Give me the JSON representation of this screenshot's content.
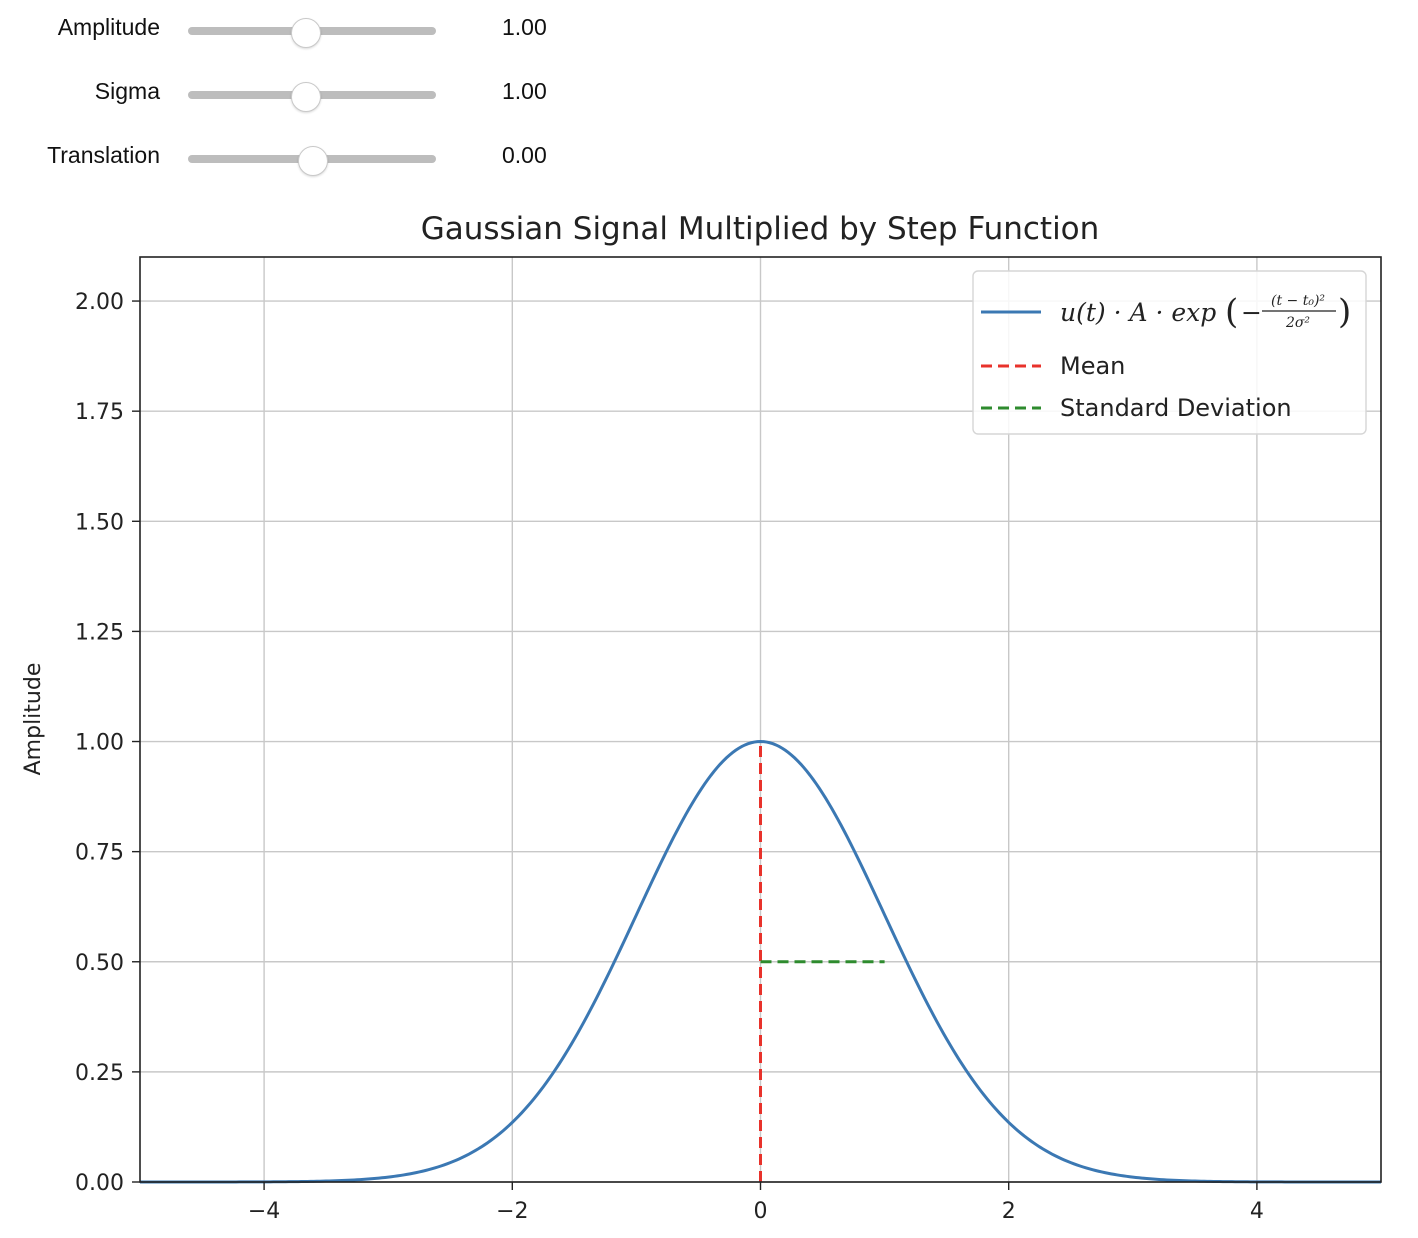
{
  "controls": [
    {
      "label": "Amplitude",
      "value_text": "1.00",
      "fraction": 0.47
    },
    {
      "label": "Sigma",
      "value_text": "1.00",
      "fraction": 0.47
    },
    {
      "label": "Translation",
      "value_text": "0.00",
      "fraction": 0.5
    }
  ],
  "chart_data": {
    "type": "line",
    "title": "Gaussian Signal Multiplied by Step Function",
    "xlabel": "",
    "ylabel": "Amplitude",
    "xlim": [
      -5,
      5
    ],
    "ylim": [
      0,
      2.1
    ],
    "grid": true,
    "x_ticks": [
      -4,
      -2,
      0,
      2,
      4
    ],
    "x_tick_labels": [
      "−4",
      "−2",
      "0",
      "2",
      "4"
    ],
    "y_ticks": [
      0,
      0.25,
      0.5,
      0.75,
      1.0,
      1.25,
      1.5,
      1.75,
      2.0
    ],
    "y_tick_labels": [
      "0.00",
      "0.25",
      "0.50",
      "0.75",
      "1.00",
      "1.25",
      "1.50",
      "1.75",
      "2.00"
    ],
    "legend_position": "upper right",
    "series": [
      {
        "name": "u(t)·A·exp(−(t−t₀)²/(2σ²))",
        "kind": "gaussian",
        "amplitude": 1.0,
        "sigma": 1.0,
        "mean": 0.0,
        "color": "#3b78b3",
        "style": "solid"
      },
      {
        "name": "Mean",
        "kind": "vline",
        "x": 0.0,
        "y": [
          0,
          1.0
        ],
        "color": "#e8322b",
        "style": "dashed"
      },
      {
        "name": "Standard Deviation",
        "kind": "hline",
        "y": 0.5,
        "x": [
          0,
          1.0
        ],
        "color": "#2e8b2e",
        "style": "dashed"
      }
    ],
    "legend_math": {
      "main": "u(t) · A · exp",
      "numerator": "(t − t₀)²",
      "denominator": "2σ²"
    }
  }
}
